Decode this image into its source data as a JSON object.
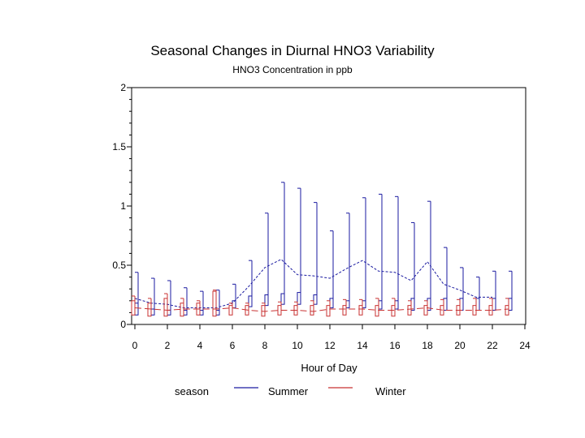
{
  "chart_data": {
    "type": "box",
    "title": "Seasonal Changes in Diurnal HNO3 Variability",
    "subtitle": "HNO3 Concentration in ppb",
    "xlabel": "Hour of Day",
    "ylabel": "",
    "xlim": [
      0,
      24
    ],
    "ylim": [
      0,
      2
    ],
    "x_ticks": [
      "0",
      "2",
      "4",
      "6",
      "8",
      "10",
      "12",
      "14",
      "16",
      "18",
      "20",
      "22",
      "24"
    ],
    "y_ticks": [
      "0",
      "0.5",
      "1",
      "1.5",
      "2"
    ],
    "legend": {
      "title": "season",
      "position": "bottom"
    },
    "series": [
      {
        "name": "Summer",
        "color": "#1a1aa0",
        "hours": [
          0,
          1,
          2,
          3,
          4,
          5,
          6,
          7,
          8,
          9,
          10,
          11,
          12,
          13,
          14,
          15,
          16,
          17,
          18,
          19,
          20,
          21,
          22,
          23
        ],
        "mean": [
          0.22,
          0.18,
          0.17,
          0.14,
          0.14,
          0.14,
          0.18,
          0.32,
          0.48,
          0.55,
          0.42,
          0.41,
          0.39,
          0.47,
          0.54,
          0.45,
          0.44,
          0.37,
          0.53,
          0.34,
          0.29,
          0.23,
          0.23,
          null
        ],
        "box_q1": [
          0.08,
          0.08,
          0.08,
          0.08,
          0.08,
          0.08,
          0.14,
          0.15,
          0.16,
          0.17,
          0.17,
          0.17,
          0.14,
          0.14,
          0.14,
          0.13,
          0.13,
          0.12,
          0.12,
          0.12,
          0.12,
          0.12,
          0.12,
          0.12
        ],
        "box_q3": [
          0.18,
          0.13,
          0.12,
          0.12,
          0.12,
          0.12,
          0.2,
          0.24,
          0.25,
          0.26,
          0.27,
          0.25,
          0.22,
          0.2,
          0.2,
          0.2,
          0.2,
          0.22,
          0.22,
          0.22,
          0.22,
          0.22,
          0.22,
          0.22
        ],
        "whisker_max": [
          0.44,
          0.39,
          0.37,
          0.31,
          0.28,
          0.29,
          0.34,
          0.54,
          0.94,
          1.2,
          1.15,
          1.03,
          0.79,
          0.94,
          1.07,
          1.1,
          1.08,
          0.86,
          1.04,
          0.65,
          0.48,
          0.4,
          0.45,
          0.45
        ]
      },
      {
        "name": "Winter",
        "color": "#c83232",
        "hours": [
          0,
          1,
          2,
          3,
          4,
          5,
          6,
          7,
          8,
          9,
          10,
          11,
          12,
          13,
          14,
          15,
          16,
          17,
          18,
          19,
          20,
          21,
          22,
          23
        ],
        "mean": [
          0.14,
          0.13,
          0.12,
          0.13,
          0.13,
          0.13,
          0.14,
          0.12,
          0.11,
          0.12,
          0.12,
          0.11,
          0.13,
          0.13,
          0.13,
          0.12,
          0.12,
          0.13,
          0.14,
          0.12,
          0.12,
          0.12,
          0.12,
          0.13
        ],
        "box_q1": [
          0.08,
          0.07,
          0.07,
          0.07,
          0.08,
          0.07,
          0.08,
          0.08,
          0.07,
          0.08,
          0.08,
          0.08,
          0.07,
          0.08,
          0.08,
          0.07,
          0.07,
          0.08,
          0.08,
          0.08,
          0.08,
          0.08,
          0.08,
          0.08
        ],
        "box_q3": [
          0.2,
          0.18,
          0.22,
          0.18,
          0.18,
          0.28,
          0.16,
          0.16,
          0.16,
          0.16,
          0.16,
          0.16,
          0.16,
          0.16,
          0.16,
          0.16,
          0.16,
          0.16,
          0.16,
          0.16,
          0.16,
          0.16,
          0.16,
          0.16
        ],
        "whisker_max": [
          0.24,
          0.22,
          0.26,
          0.22,
          0.2,
          0.29,
          0.18,
          0.18,
          0.18,
          0.19,
          0.19,
          0.2,
          0.2,
          0.21,
          0.21,
          0.22,
          0.22,
          0.2,
          0.2,
          0.21,
          0.21,
          0.22,
          0.22,
          0.22
        ]
      }
    ]
  }
}
